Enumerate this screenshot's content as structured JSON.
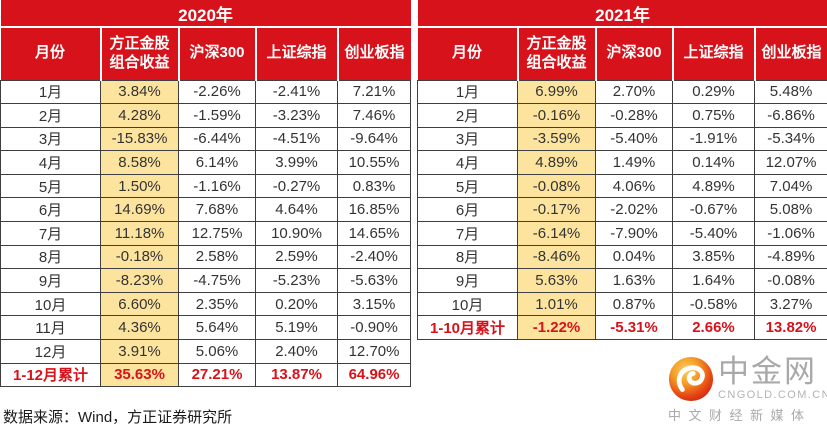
{
  "chart_data": [
    {
      "type": "table",
      "title": "2020年",
      "columns": [
        "月份",
        "方正金股组合收益",
        "沪深300",
        "上证综指",
        "创业板指"
      ],
      "rows": [
        [
          "1月",
          "3.84%",
          "-2.26%",
          "-2.41%",
          "7.21%"
        ],
        [
          "2月",
          "4.28%",
          "-1.59%",
          "-3.23%",
          "7.46%"
        ],
        [
          "3月",
          "-15.83%",
          "-6.44%",
          "-4.51%",
          "-9.64%"
        ],
        [
          "4月",
          "8.58%",
          "6.14%",
          "3.99%",
          "10.55%"
        ],
        [
          "5月",
          "1.50%",
          "-1.16%",
          "-0.27%",
          "0.83%"
        ],
        [
          "6月",
          "14.69%",
          "7.68%",
          "4.64%",
          "16.85%"
        ],
        [
          "7月",
          "11.18%",
          "12.75%",
          "10.90%",
          "14.65%"
        ],
        [
          "8月",
          "-0.18%",
          "2.58%",
          "2.59%",
          "-2.40%"
        ],
        [
          "9月",
          "-8.23%",
          "-4.75%",
          "-5.23%",
          "-5.63%"
        ],
        [
          "10月",
          "6.60%",
          "2.35%",
          "0.20%",
          "3.15%"
        ],
        [
          "11月",
          "4.36%",
          "5.64%",
          "5.19%",
          "-0.90%"
        ],
        [
          "12月",
          "3.91%",
          "5.06%",
          "2.40%",
          "12.70%"
        ]
      ],
      "total_row": [
        "1-12月累计",
        "35.63%",
        "27.21%",
        "13.87%",
        "64.96%"
      ],
      "highlight_column": "方正金股组合收益"
    },
    {
      "type": "table",
      "title": "2021年",
      "columns": [
        "月份",
        "方正金股组合收益",
        "沪深300",
        "上证综指",
        "创业板指"
      ],
      "rows": [
        [
          "1月",
          "6.99%",
          "2.70%",
          "0.29%",
          "5.48%"
        ],
        [
          "2月",
          "-0.16%",
          "-0.28%",
          "0.75%",
          "-6.86%"
        ],
        [
          "3月",
          "-3.59%",
          "-5.40%",
          "-1.91%",
          "-5.34%"
        ],
        [
          "4月",
          "4.89%",
          "1.49%",
          "0.14%",
          "12.07%"
        ],
        [
          "5月",
          "-0.08%",
          "4.06%",
          "4.89%",
          "7.04%"
        ],
        [
          "6月",
          "-0.17%",
          "-2.02%",
          "-0.67%",
          "5.08%"
        ],
        [
          "7月",
          "-6.14%",
          "-7.90%",
          "-5.40%",
          "-1.06%"
        ],
        [
          "8月",
          "-8.46%",
          "0.04%",
          "3.85%",
          "-4.89%"
        ],
        [
          "9月",
          "5.63%",
          "1.63%",
          "1.64%",
          "-0.08%"
        ],
        [
          "10月",
          "1.01%",
          "0.87%",
          "-0.58%",
          "3.27%"
        ]
      ],
      "total_row": [
        "1-10月累计",
        "-1.22%",
        "-5.31%",
        "2.66%",
        "13.82%"
      ],
      "highlight_column": "方正金股组合收益"
    }
  ],
  "footer": {
    "source_note": "数据来源：Wind，方正证券研究所"
  },
  "logo": {
    "brand": "中金网",
    "domain": "CNGOLD.COM.CN",
    "tagline": "中文财经新媒体"
  },
  "colors": {
    "header_red": "#d7121b",
    "highlight_yellow": "#fce49f",
    "total_text_red": "#d7121b",
    "border_dark": "#3f3f3f",
    "logo_gray": "#a9a9a9"
  }
}
